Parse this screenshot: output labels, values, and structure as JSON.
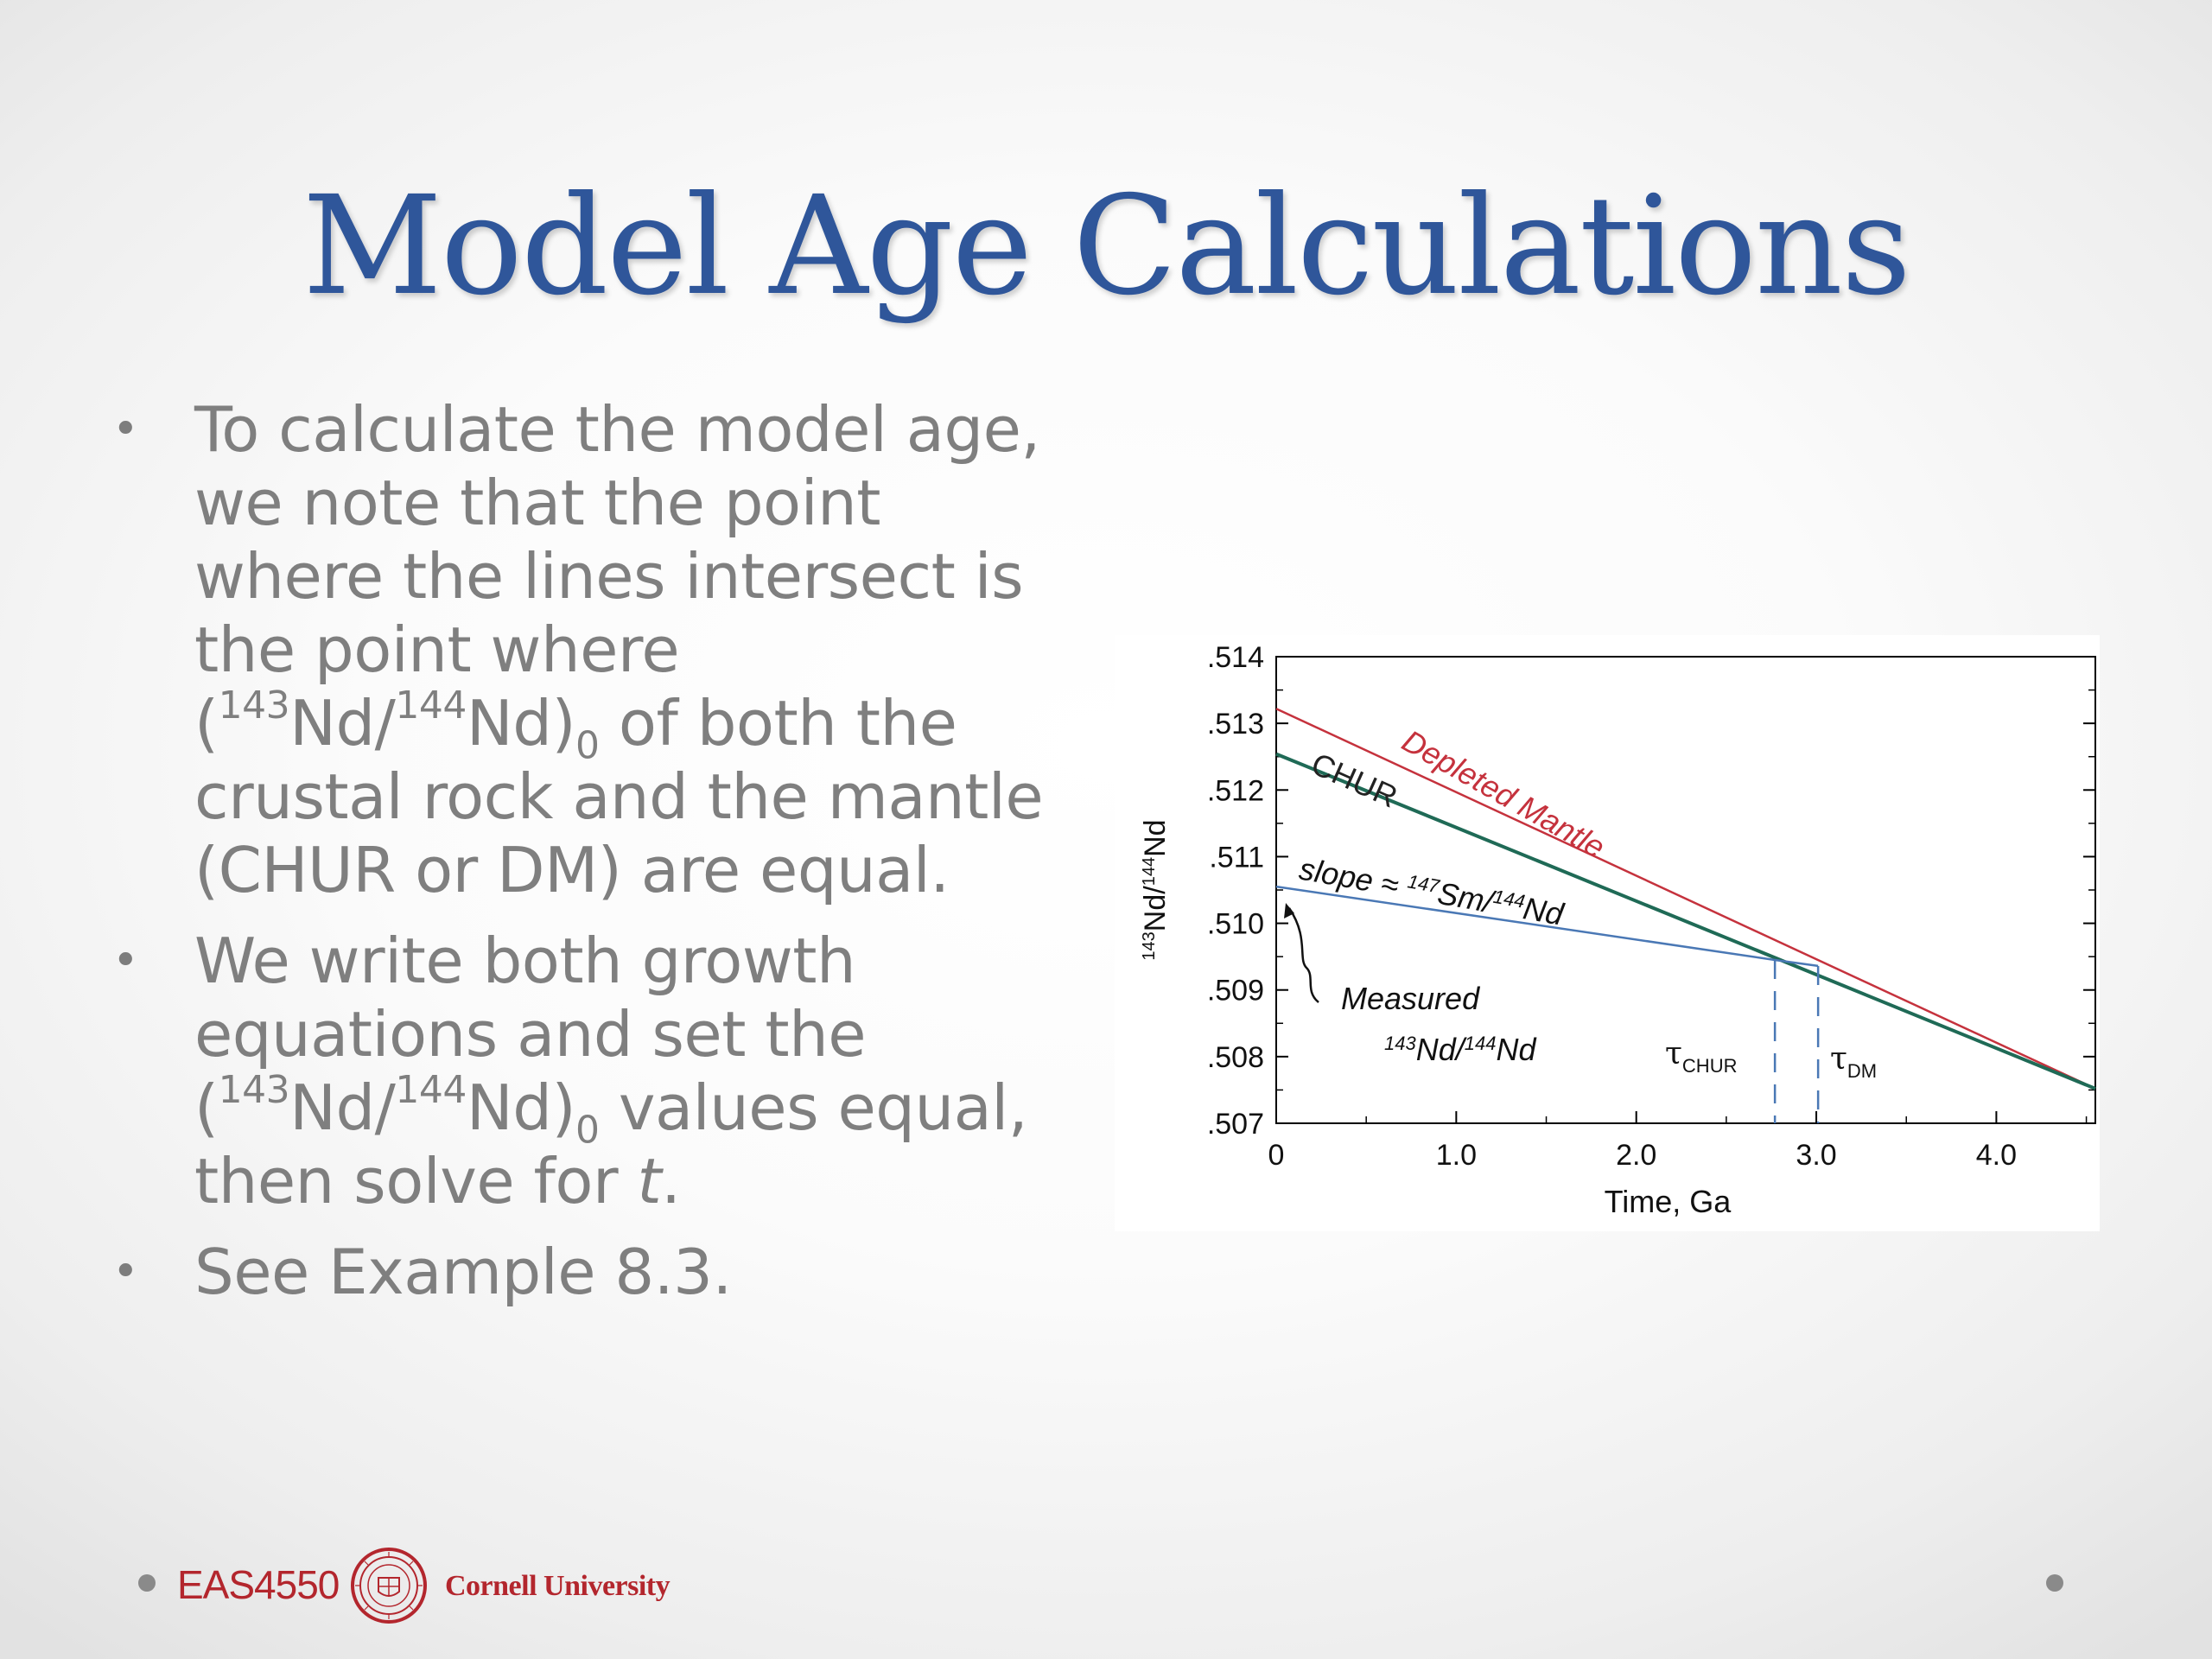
{
  "slide": {
    "title": "Model Age Calculations",
    "bullets": [
      {
        "parts": [
          {
            "t": "To calculate the model age, we note that the point where the lines intersect is the point where ("
          },
          {
            "t": "143",
            "style": "sup"
          },
          {
            "t": "Nd/"
          },
          {
            "t": "144",
            "style": "sup"
          },
          {
            "t": "Nd)"
          },
          {
            "t": "0",
            "style": "sub"
          },
          {
            "t": " of both the crustal rock and the mantle (CHUR or DM) are equal."
          }
        ]
      },
      {
        "parts": [
          {
            "t": "We write both growth equations and set the ("
          },
          {
            "t": "143",
            "style": "sup"
          },
          {
            "t": "Nd/"
          },
          {
            "t": "144",
            "style": "sup"
          },
          {
            "t": "Nd)"
          },
          {
            "t": "0",
            "style": "sub"
          },
          {
            "t": " values equal, then solve for "
          },
          {
            "t": "t",
            "style": "em"
          },
          {
            "t": "."
          }
        ]
      },
      {
        "parts": [
          {
            "t": "See Example 8.3."
          }
        ]
      }
    ]
  },
  "chart_data": {
    "type": "line",
    "xlabel": "Time, Ga",
    "ylabel": "143Nd/144Nd",
    "xlim": [
      0,
      4.55
    ],
    "ylim": [
      0.507,
      0.514
    ],
    "x_ticks": [
      0,
      1.0,
      2.0,
      3.0,
      4.0
    ],
    "x_tick_labels": [
      "0",
      "1.0",
      "2.0",
      "3.0",
      "4.0"
    ],
    "y_ticks": [
      0.507,
      0.508,
      0.509,
      0.51,
      0.511,
      0.512,
      0.513,
      0.514
    ],
    "y_tick_labels": [
      ".507",
      ".508",
      ".509",
      ".510",
      ".511",
      ".512",
      ".513",
      ".514"
    ],
    "grid": false,
    "series": [
      {
        "name": "Depleted Mantle",
        "color": "#c5323d",
        "x": [
          0,
          4.55
        ],
        "y": [
          0.51322,
          0.50752
        ]
      },
      {
        "name": "CHUR",
        "color": "#1f6a56",
        "x": [
          0,
          4.55
        ],
        "y": [
          0.51254,
          0.50752
        ]
      },
      {
        "color": "#4a78b5",
        "x": [
          0,
          2.77,
          3.01
        ],
        "y": [
          0.51055,
          0.50945,
          0.50936
        ]
      }
    ],
    "vlines": [
      {
        "x": 2.77,
        "y_top": 0.50945,
        "color": "#4a78b5",
        "label": "CHUR"
      },
      {
        "x": 3.01,
        "y_top": 0.50936,
        "color": "#4a78b5",
        "label": "DM"
      }
    ],
    "annotations": {
      "chur_label": "CHUR",
      "dm_label": "Depleted Mantle",
      "slope_prefix": "slope ≈ ",
      "slope_sup1": "147",
      "slope_mid": "Sm/",
      "slope_sup2": "144",
      "slope_end": "Nd",
      "measured_line1": "Measured",
      "measured_sup1": "143",
      "measured_mid": "Nd/",
      "measured_sup2": "144",
      "measured_end": "Nd",
      "tau": "τ",
      "tau_chur_sub": "CHUR",
      "tau_dm_sub": "DM",
      "ylabel_sup1": "143",
      "ylabel_mid": "Nd/",
      "ylabel_sup2": "144",
      "ylabel_end": "Nd"
    }
  },
  "footer": {
    "course": "EAS4550",
    "university": "Cornell University"
  }
}
